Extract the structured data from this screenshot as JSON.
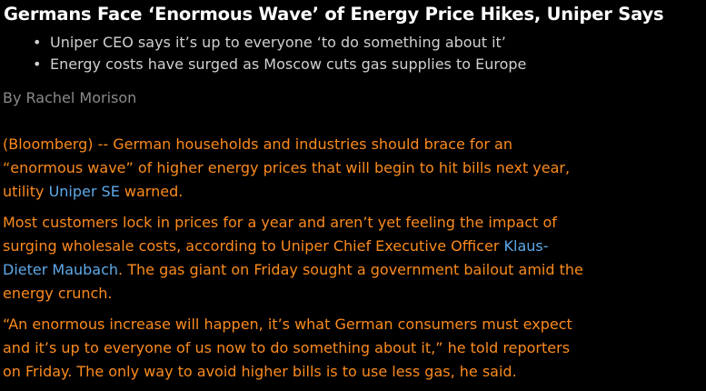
{
  "article": {
    "headline": "Germans Face ‘Enormous Wave’ of Energy Price Hikes, Uniper Says",
    "bullets": [
      "Uniper CEO says it’s up to everyone ‘to do something about it’",
      "Energy costs have surged as Moscow cuts gas supplies to Europe"
    ],
    "bullet_glyph": "•",
    "byline": "By Rachel Morison",
    "paragraphs": [
      {
        "lines": [
          "(Bloomberg) -- German households and industries should brace for an",
          "“enormous wave” of higher energy prices that will begin to hit bills next year,"
        ],
        "line3_before": "utility ",
        "link": "Uniper SE",
        "line3_after": " warned."
      },
      {
        "lines": [
          "Most customers lock in prices for a year and aren’t yet feeling the impact of"
        ],
        "line2_before": "surging wholesale costs, according to Uniper Chief Executive Officer ",
        "link_part1": "Klaus-",
        "link_part2": "Dieter Maubach",
        "line3_after": ". The gas giant on Friday sought a government bailout amid the",
        "line4": "energy crunch."
      },
      {
        "lines": [
          "“An enormous increase will happen, it’s what German consumers must expect",
          "and it’s up to everyone of us now to do something about it,” he told reporters",
          "on Friday. The only way to avoid higher bills is to use less gas, he said."
        ]
      }
    ],
    "colors": {
      "background": "#000000",
      "headline": "#ffffff",
      "bullets": "#d0d0d0",
      "byline": "#8a8a8a",
      "body": "#fb8b1e",
      "link": "#5fa9e8"
    }
  }
}
